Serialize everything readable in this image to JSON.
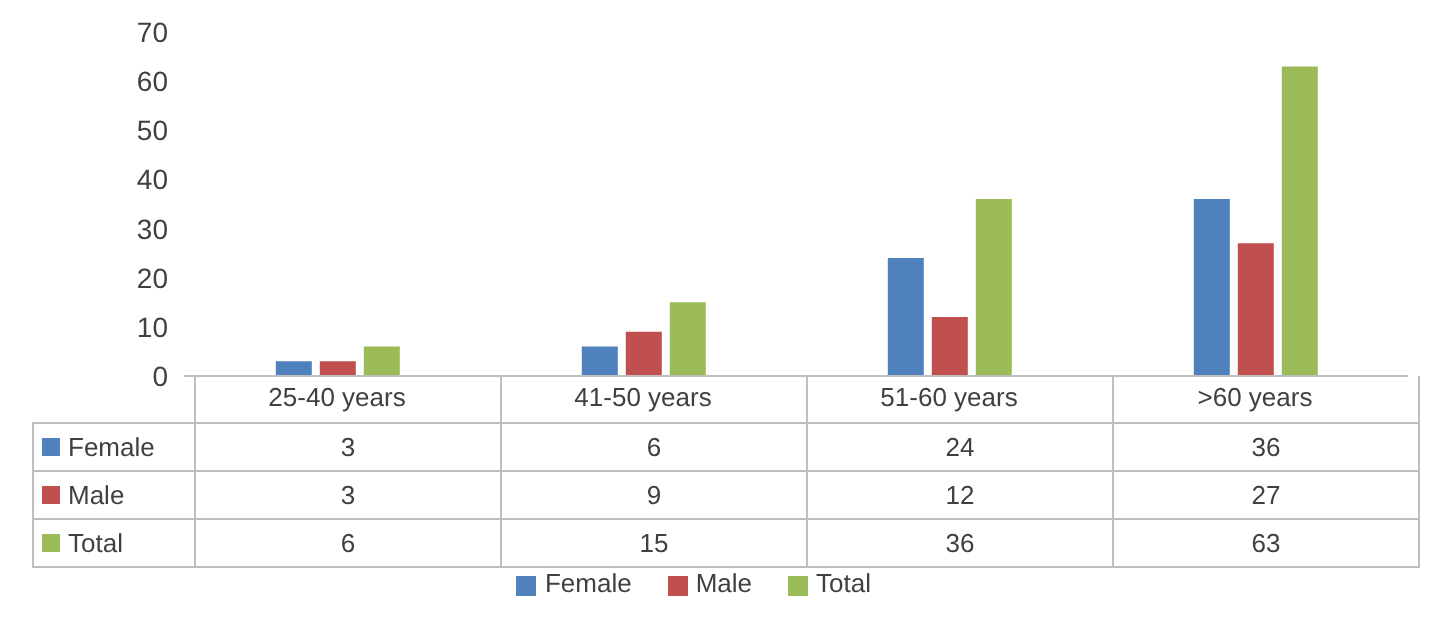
{
  "chart_data": {
    "type": "bar",
    "categories": [
      "25-40 years",
      "41-50 years",
      "51-60 years",
      ">60 years"
    ],
    "series": [
      {
        "name": "Female",
        "color": "#4f81bd",
        "values": [
          3,
          6,
          24,
          36
        ]
      },
      {
        "name": "Male",
        "color": "#c0504d",
        "values": [
          3,
          9,
          12,
          27
        ]
      },
      {
        "name": "Total",
        "color": "#9bbb59",
        "values": [
          6,
          15,
          36,
          63
        ]
      }
    ],
    "ylim": [
      0,
      70
    ],
    "yticks": [
      0,
      10,
      20,
      30,
      40,
      50,
      60,
      70
    ],
    "grid": false,
    "legend": "bottom",
    "data_labels": true
  }
}
